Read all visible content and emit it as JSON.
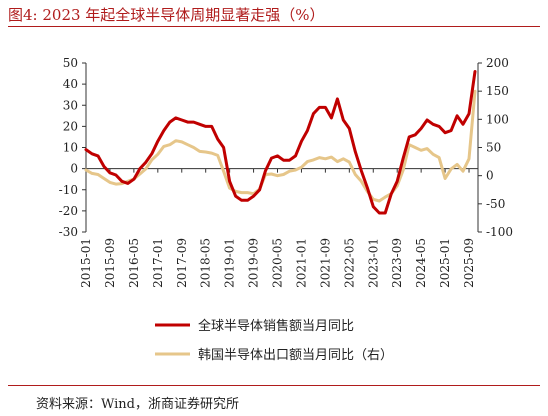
{
  "title": "图4:   2023 年起全球半导体周期显著走强（%）",
  "source": "资料来源：Wind，浙商证券研究所",
  "colors": {
    "series_global": "#c00000",
    "series_korea": "#e6c68a",
    "rule": "#b01c1c"
  },
  "chart_data": {
    "type": "line",
    "x_ticks": [
      "2015-01",
      "2015-09",
      "2016-05",
      "2017-01",
      "2017-09",
      "2018-05",
      "2019-01",
      "2019-09",
      "2020-05",
      "2021-01",
      "2021-09",
      "2022-05",
      "2023-01",
      "2023-09",
      "2024-05",
      "2025-01",
      "2025-09"
    ],
    "x_range": [
      "2015-01",
      "2025-12"
    ],
    "left_axis": {
      "range": [
        -30,
        50
      ],
      "ticks": [
        "50",
        "40",
        "30",
        "20",
        "10",
        "0",
        "-10",
        "-20",
        "-30"
      ]
    },
    "right_axis": {
      "range": [
        -100,
        200
      ],
      "ticks": [
        "200",
        "150",
        "100",
        "50",
        "0",
        "-50",
        "-100"
      ]
    },
    "series": [
      {
        "name": "全球半导体销售额当月同比",
        "axis": "left",
        "points": [
          [
            "2015-01",
            9
          ],
          [
            "2015-03",
            7
          ],
          [
            "2015-05",
            6
          ],
          [
            "2015-07",
            1
          ],
          [
            "2015-09",
            -2
          ],
          [
            "2015-11",
            -3
          ],
          [
            "2016-01",
            -6
          ],
          [
            "2016-03",
            -7
          ],
          [
            "2016-05",
            -5
          ],
          [
            "2016-07",
            0
          ],
          [
            "2016-09",
            3
          ],
          [
            "2016-11",
            7
          ],
          [
            "2017-01",
            13
          ],
          [
            "2017-03",
            18
          ],
          [
            "2017-05",
            22
          ],
          [
            "2017-07",
            24
          ],
          [
            "2017-09",
            23
          ],
          [
            "2017-11",
            22
          ],
          [
            "2018-01",
            22
          ],
          [
            "2018-03",
            21
          ],
          [
            "2018-05",
            20
          ],
          [
            "2018-07",
            20
          ],
          [
            "2018-09",
            14
          ],
          [
            "2018-11",
            10
          ],
          [
            "2019-01",
            -6
          ],
          [
            "2019-03",
            -13
          ],
          [
            "2019-05",
            -15
          ],
          [
            "2019-07",
            -15
          ],
          [
            "2019-09",
            -13
          ],
          [
            "2019-11",
            -10
          ],
          [
            "2020-01",
            -1
          ],
          [
            "2020-03",
            5
          ],
          [
            "2020-05",
            6
          ],
          [
            "2020-07",
            4
          ],
          [
            "2020-09",
            4
          ],
          [
            "2020-11",
            6
          ],
          [
            "2021-01",
            13
          ],
          [
            "2021-03",
            18
          ],
          [
            "2021-05",
            26
          ],
          [
            "2021-07",
            29
          ],
          [
            "2021-09",
            29
          ],
          [
            "2021-11",
            24
          ],
          [
            "2022-01",
            33
          ],
          [
            "2022-03",
            23
          ],
          [
            "2022-05",
            19
          ],
          [
            "2022-07",
            8
          ],
          [
            "2022-09",
            -1
          ],
          [
            "2022-11",
            -9
          ],
          [
            "2023-01",
            -18
          ],
          [
            "2023-03",
            -21
          ],
          [
            "2023-05",
            -21
          ],
          [
            "2023-07",
            -12
          ],
          [
            "2023-09",
            -6
          ],
          [
            "2023-11",
            5
          ],
          [
            "2024-01",
            15
          ],
          [
            "2024-03",
            16
          ],
          [
            "2024-05",
            19
          ],
          [
            "2024-07",
            23
          ],
          [
            "2024-09",
            21
          ],
          [
            "2024-11",
            20
          ],
          [
            "2025-01",
            17
          ],
          [
            "2025-03",
            18
          ],
          [
            "2025-05",
            25
          ],
          [
            "2025-07",
            21
          ],
          [
            "2025-09",
            26
          ],
          [
            "2025-11",
            46
          ]
        ]
      },
      {
        "name": "韩国半导体出口额当月同比（右）",
        "axis": "right",
        "points": [
          [
            "2015-01",
            10
          ],
          [
            "2015-03",
            4
          ],
          [
            "2015-05",
            2
          ],
          [
            "2015-07",
            -5
          ],
          [
            "2015-09",
            -12
          ],
          [
            "2015-11",
            -15
          ],
          [
            "2016-01",
            -14
          ],
          [
            "2016-03",
            -10
          ],
          [
            "2016-05",
            -6
          ],
          [
            "2016-07",
            3
          ],
          [
            "2016-09",
            12
          ],
          [
            "2016-11",
            28
          ],
          [
            "2017-01",
            38
          ],
          [
            "2017-03",
            52
          ],
          [
            "2017-05",
            55
          ],
          [
            "2017-07",
            62
          ],
          [
            "2017-09",
            60
          ],
          [
            "2017-11",
            55
          ],
          [
            "2018-01",
            50
          ],
          [
            "2018-03",
            43
          ],
          [
            "2018-05",
            42
          ],
          [
            "2018-07",
            40
          ],
          [
            "2018-09",
            36
          ],
          [
            "2018-11",
            8
          ],
          [
            "2019-01",
            -22
          ],
          [
            "2019-03",
            -28
          ],
          [
            "2019-05",
            -30
          ],
          [
            "2019-07",
            -30
          ],
          [
            "2019-09",
            -32
          ],
          [
            "2019-11",
            -24
          ],
          [
            "2020-01",
            2
          ],
          [
            "2020-03",
            3
          ],
          [
            "2020-05",
            0
          ],
          [
            "2020-07",
            2
          ],
          [
            "2020-09",
            8
          ],
          [
            "2020-11",
            10
          ],
          [
            "2021-01",
            15
          ],
          [
            "2021-03",
            25
          ],
          [
            "2021-05",
            28
          ],
          [
            "2021-07",
            32
          ],
          [
            "2021-09",
            30
          ],
          [
            "2021-11",
            33
          ],
          [
            "2022-01",
            25
          ],
          [
            "2022-03",
            30
          ],
          [
            "2022-05",
            24
          ],
          [
            "2022-07",
            2
          ],
          [
            "2022-09",
            -10
          ],
          [
            "2022-11",
            -28
          ],
          [
            "2023-01",
            -42
          ],
          [
            "2023-03",
            -45
          ],
          [
            "2023-05",
            -38
          ],
          [
            "2023-07",
            -32
          ],
          [
            "2023-09",
            -18
          ],
          [
            "2023-11",
            10
          ],
          [
            "2024-01",
            55
          ],
          [
            "2024-03",
            50
          ],
          [
            "2024-05",
            45
          ],
          [
            "2024-07",
            48
          ],
          [
            "2024-09",
            38
          ],
          [
            "2024-11",
            32
          ],
          [
            "2025-01",
            -5
          ],
          [
            "2025-03",
            12
          ],
          [
            "2025-05",
            20
          ],
          [
            "2025-07",
            8
          ],
          [
            "2025-09",
            30
          ],
          [
            "2025-11",
            150
          ]
        ]
      }
    ],
    "legend_position": "bottom-center",
    "grid": false
  }
}
